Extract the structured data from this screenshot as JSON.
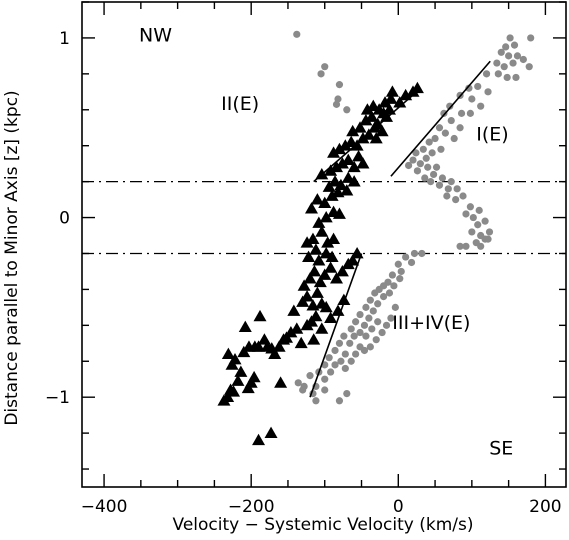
{
  "chart_data": {
    "type": "scatter",
    "xlabel": "Velocity − Systemic Velocity (km/s)",
    "ylabel": "Distance parallel to Minor Axis [z] (kpc)",
    "xlim": [
      -430,
      228
    ],
    "ylim": [
      -1.5,
      1.2
    ],
    "x_ticks": [
      -400,
      -200,
      0,
      200
    ],
    "x_tick_labels": [
      "−400",
      "−200",
      "0",
      "200"
    ],
    "y_ticks": [
      -1,
      0,
      1
    ],
    "y_tick_labels": [
      "−1",
      "0",
      "1"
    ],
    "x_minor_step": 50,
    "y_minor_step": 0.2,
    "dash_dot_lines_z": [
      0.2,
      -0.2
    ],
    "annotations": [
      {
        "text": "NW",
        "x": -330,
        "y": 0.98
      },
      {
        "text": "SE",
        "x": 140,
        "y": -1.32
      },
      {
        "text": "II(E)",
        "x": -215,
        "y": 0.6
      },
      {
        "text": "I(E)",
        "x": 128,
        "y": 0.43
      },
      {
        "text": "III+IV(E)",
        "x": 45,
        "y": -0.62
      }
    ],
    "fit_lines": [
      {
        "name": "I(E)",
        "x": [
          -10,
          125
        ],
        "y": [
          0.23,
          0.87
        ]
      },
      {
        "name": "II(E)",
        "x": [
          -115,
          25
        ],
        "y": [
          0.2,
          0.7
        ]
      },
      {
        "name": "III+IV(E)",
        "x": [
          -120,
          -50
        ],
        "y": [
          -1.0,
          -0.2
        ]
      }
    ],
    "series": [
      {
        "marker": "filled triangle",
        "color": "#000000",
        "points": [
          [
            -237,
            -1.02
          ],
          [
            -232,
            -1.0
          ],
          [
            -228,
            -0.96
          ],
          [
            -224,
            -0.97
          ],
          [
            -218,
            -0.91
          ],
          [
            -214,
            -0.86
          ],
          [
            -226,
            -0.82
          ],
          [
            -204,
            -0.95
          ],
          [
            -200,
            -0.92
          ],
          [
            -196,
            -0.89
          ],
          [
            -231,
            -0.76
          ],
          [
            -222,
            -0.79
          ],
          [
            -210,
            -0.75
          ],
          [
            -203,
            -0.72
          ],
          [
            -195,
            -0.72
          ],
          [
            -190,
            -0.72
          ],
          [
            -182,
            -0.68
          ],
          [
            -178,
            -0.72
          ],
          [
            -172,
            -0.73
          ],
          [
            -168,
            -0.76
          ],
          [
            -162,
            -0.72
          ],
          [
            -156,
            -0.68
          ],
          [
            -152,
            -0.67
          ],
          [
            -146,
            -0.64
          ],
          [
            -138,
            -0.62
          ],
          [
            -132,
            -0.7
          ],
          [
            -124,
            -0.6
          ],
          [
            -118,
            -0.58
          ],
          [
            -112,
            -0.55
          ],
          [
            -104,
            -0.62
          ],
          [
            -188,
            -0.55
          ],
          [
            -208,
            -0.61
          ],
          [
            -142,
            -0.52
          ],
          [
            -130,
            -0.47
          ],
          [
            -124,
            -0.44
          ],
          [
            -116,
            -0.49
          ],
          [
            -110,
            -0.42
          ],
          [
            -104,
            -0.48
          ],
          [
            -98,
            -0.5
          ],
          [
            -92,
            -0.56
          ],
          [
            -82,
            -0.52
          ],
          [
            -74,
            -0.46
          ],
          [
            -128,
            -0.38
          ],
          [
            -120,
            -0.34
          ],
          [
            -114,
            -0.3
          ],
          [
            -106,
            -0.36
          ],
          [
            -100,
            -0.32
          ],
          [
            -92,
            -0.28
          ],
          [
            -84,
            -0.34
          ],
          [
            -76,
            -0.3
          ],
          [
            -68,
            -0.26
          ],
          [
            -62,
            -0.24
          ],
          [
            -56,
            -0.2
          ],
          [
            -122,
            -0.22
          ],
          [
            -112,
            -0.18
          ],
          [
            -108,
            -0.24
          ],
          [
            -98,
            -0.2
          ],
          [
            -90,
            -0.22
          ],
          [
            -124,
            -0.14
          ],
          [
            -116,
            -0.12
          ],
          [
            -104,
            -0.08
          ],
          [
            -96,
            -0.14
          ],
          [
            -88,
            -0.12
          ],
          [
            -108,
            -0.03
          ],
          [
            -98,
            0.0
          ],
          [
            -88,
            0.03
          ],
          [
            -118,
            0.05
          ],
          [
            -80,
            0.02
          ],
          [
            -110,
            0.1
          ],
          [
            -100,
            0.08
          ],
          [
            -90,
            0.12
          ],
          [
            -82,
            0.14
          ],
          [
            -94,
            0.17
          ],
          [
            -86,
            0.2
          ],
          [
            -78,
            0.18
          ],
          [
            -70,
            0.15
          ],
          [
            -68,
            0.22
          ],
          [
            -60,
            0.2
          ],
          [
            -104,
            0.24
          ],
          [
            -92,
            0.26
          ],
          [
            -84,
            0.28
          ],
          [
            -76,
            0.3
          ],
          [
            -68,
            0.32
          ],
          [
            -60,
            0.28
          ],
          [
            -54,
            0.34
          ],
          [
            -48,
            0.3
          ],
          [
            -88,
            0.36
          ],
          [
            -80,
            0.38
          ],
          [
            -72,
            0.4
          ],
          [
            -64,
            0.42
          ],
          [
            -56,
            0.4
          ],
          [
            -48,
            0.44
          ],
          [
            -40,
            0.46
          ],
          [
            -32,
            0.5
          ],
          [
            -62,
            0.48
          ],
          [
            -52,
            0.5
          ],
          [
            -44,
            0.54
          ],
          [
            -36,
            0.56
          ],
          [
            -28,
            0.52
          ],
          [
            -42,
            0.6
          ],
          [
            -34,
            0.62
          ],
          [
            -26,
            0.6
          ],
          [
            -18,
            0.64
          ],
          [
            -10,
            0.66
          ],
          [
            -20,
            0.58
          ],
          [
            -30,
            0.44
          ],
          [
            -22,
            0.48
          ],
          [
            -16,
            0.56
          ],
          [
            -12,
            0.6
          ],
          [
            10,
            0.68
          ],
          [
            20,
            0.7
          ],
          [
            26,
            0.72
          ],
          [
            -8,
            0.7
          ],
          [
            2,
            0.64
          ],
          [
            -190,
            -1.24
          ],
          [
            -173,
            -1.2
          ],
          [
            -115,
            -0.68
          ],
          [
            -160,
            -0.92
          ]
        ]
      },
      {
        "marker": "filled circle",
        "color": "#8a8a8a",
        "points": [
          [
            -138,
            1.02
          ],
          [
            -100,
            0.84
          ],
          [
            -105,
            0.8
          ],
          [
            -80,
            0.74
          ],
          [
            -82,
            0.66
          ],
          [
            -84,
            0.63
          ],
          [
            -70,
            0.6
          ],
          [
            180,
            1.0
          ],
          [
            152,
            1.0
          ],
          [
            158,
            0.96
          ],
          [
            146,
            0.95
          ],
          [
            140,
            0.92
          ],
          [
            150,
            0.9
          ],
          [
            162,
            0.9
          ],
          [
            170,
            0.88
          ],
          [
            134,
            0.86
          ],
          [
            144,
            0.84
          ],
          [
            156,
            0.86
          ],
          [
            178,
            0.84
          ],
          [
            120,
            0.8
          ],
          [
            136,
            0.8
          ],
          [
            148,
            0.78
          ],
          [
            160,
            0.78
          ],
          [
            96,
            0.72
          ],
          [
            108,
            0.73
          ],
          [
            122,
            0.7
          ],
          [
            84,
            0.68
          ],
          [
            100,
            0.66
          ],
          [
            112,
            0.62
          ],
          [
            70,
            0.62
          ],
          [
            86,
            0.58
          ],
          [
            98,
            0.58
          ],
          [
            62,
            0.58
          ],
          [
            72,
            0.54
          ],
          [
            84,
            0.5
          ],
          [
            56,
            0.5
          ],
          [
            64,
            0.47
          ],
          [
            76,
            0.44
          ],
          [
            50,
            0.44
          ],
          [
            42,
            0.42
          ],
          [
            58,
            0.38
          ],
          [
            46,
            0.36
          ],
          [
            34,
            0.38
          ],
          [
            24,
            0.36
          ],
          [
            38,
            0.33
          ],
          [
            20,
            0.32
          ],
          [
            30,
            0.3
          ],
          [
            14,
            0.29
          ],
          [
            26,
            0.26
          ],
          [
            40,
            0.28
          ],
          [
            52,
            0.28
          ],
          [
            36,
            0.22
          ],
          [
            48,
            0.24
          ],
          [
            60,
            0.22
          ],
          [
            72,
            0.2
          ],
          [
            44,
            0.2
          ],
          [
            56,
            0.18
          ],
          [
            68,
            0.16
          ],
          [
            80,
            0.16
          ],
          [
            66,
            0.12
          ],
          [
            78,
            0.1
          ],
          [
            88,
            0.12
          ],
          [
            98,
            0.06
          ],
          [
            92,
            0.02
          ],
          [
            102,
            0.0
          ],
          [
            110,
            0.04
          ],
          [
            108,
            -0.04
          ],
          [
            118,
            -0.02
          ],
          [
            100,
            -0.08
          ],
          [
            112,
            -0.1
          ],
          [
            124,
            -0.08
          ],
          [
            106,
            -0.14
          ],
          [
            118,
            -0.12
          ],
          [
            92,
            -0.16
          ],
          [
            84,
            -0.16
          ],
          [
            112,
            -0.16
          ],
          [
            122,
            -0.12
          ],
          [
            22,
            -0.2
          ],
          [
            32,
            -0.2
          ],
          [
            10,
            -0.22
          ],
          [
            18,
            -0.25
          ],
          [
            0,
            -0.26
          ],
          [
            4,
            -0.3
          ],
          [
            -8,
            -0.32
          ],
          [
            2,
            -0.34
          ],
          [
            -14,
            -0.36
          ],
          [
            -20,
            -0.38
          ],
          [
            -6,
            -0.38
          ],
          [
            -26,
            -0.4
          ],
          [
            -32,
            -0.42
          ],
          [
            -12,
            -0.42
          ],
          [
            -20,
            -0.44
          ],
          [
            -38,
            -0.46
          ],
          [
            -28,
            -0.48
          ],
          [
            -44,
            -0.5
          ],
          [
            -34,
            -0.52
          ],
          [
            -52,
            -0.54
          ],
          [
            -40,
            -0.56
          ],
          [
            -58,
            -0.58
          ],
          [
            -46,
            -0.6
          ],
          [
            -64,
            -0.62
          ],
          [
            -52,
            -0.64
          ],
          [
            -74,
            -0.66
          ],
          [
            -60,
            -0.66
          ],
          [
            -80,
            -0.7
          ],
          [
            -66,
            -0.7
          ],
          [
            -52,
            -0.72
          ],
          [
            -86,
            -0.74
          ],
          [
            -72,
            -0.76
          ],
          [
            -58,
            -0.76
          ],
          [
            -94,
            -0.78
          ],
          [
            -78,
            -0.8
          ],
          [
            -64,
            -0.8
          ],
          [
            -100,
            -0.82
          ],
          [
            -86,
            -0.82
          ],
          [
            -72,
            -0.84
          ],
          [
            -108,
            -0.86
          ],
          [
            -92,
            -0.86
          ],
          [
            -120,
            -0.88
          ],
          [
            -100,
            -0.9
          ],
          [
            -136,
            -0.92
          ],
          [
            -128,
            -0.94
          ],
          [
            -112,
            -0.94
          ],
          [
            -130,
            -0.96
          ],
          [
            -116,
            -0.98
          ],
          [
            -100,
            -0.96
          ],
          [
            -112,
            -1.02
          ],
          [
            -80,
            -1.02
          ],
          [
            -70,
            -0.98
          ],
          [
            -16,
            -0.6
          ],
          [
            -22,
            -0.64
          ],
          [
            -30,
            -0.68
          ],
          [
            -38,
            -0.72
          ],
          [
            -46,
            -0.74
          ],
          [
            -10,
            -0.56
          ],
          [
            -4,
            -0.5
          ],
          [
            -28,
            -0.58
          ],
          [
            -36,
            -0.62
          ],
          [
            -44,
            -0.66
          ]
        ]
      }
    ]
  }
}
